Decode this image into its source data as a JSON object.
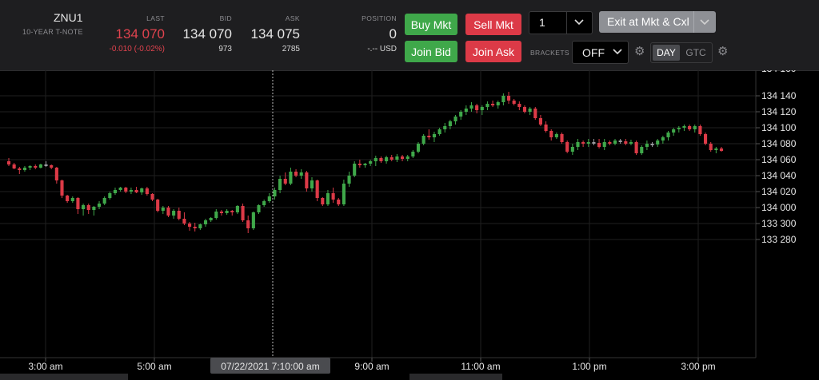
{
  "instrument": {
    "symbol": "ZNU1",
    "name": "10-YEAR T-NOTE"
  },
  "quote": {
    "last_header": "LAST",
    "last": "134 070",
    "change": "-0.010 (-0.02%)",
    "bid_header": "BID",
    "bid": "134 070",
    "bid_size": "973",
    "ask_header": "ASK",
    "ask": "134 075",
    "ask_size": "2785"
  },
  "position": {
    "header": "POSITION",
    "value": "0",
    "pnl": "-.-- USD"
  },
  "buttons": {
    "buy_mkt": "Buy Mkt",
    "sell_mkt": "Sell Mkt",
    "join_bid": "Join Bid",
    "join_ask": "Join Ask",
    "exit": "Exit at Mkt & Cxl"
  },
  "quantity": "1",
  "brackets": {
    "label": "BRACKETS",
    "value": "OFF"
  },
  "tif": {
    "day": "DAY",
    "gtc": "GTC"
  },
  "icons": {
    "dropdown": "chevron-down-icon",
    "settings": "gear-icon"
  },
  "colors": {
    "up": "#3fa84a",
    "down": "#dc3a47",
    "doji": "#9a9aa0",
    "buy": "#3fa84a",
    "sell": "#dc3a47"
  },
  "chart_data": {
    "type": "candlestick",
    "y_ticks": [
      "134 140",
      "134 120",
      "134 100",
      "134 080",
      "134 060",
      "134 040",
      "134 020",
      "134 000",
      "133 300",
      "133 280"
    ],
    "x_ticks": [
      "3:00 am",
      "5:00 am",
      "9:00 am",
      "11:00 am",
      "1:00 pm",
      "3:00 pm"
    ],
    "crosshair_label": "07/22/2021 7:10:00 am",
    "candles": [
      [
        58,
        62,
        52,
        54
      ],
      [
        54,
        56,
        48,
        49
      ],
      [
        49,
        51,
        42,
        47
      ],
      [
        47,
        52,
        45,
        50
      ],
      [
        50,
        53,
        47,
        52
      ],
      [
        52,
        54,
        48,
        50
      ],
      [
        50,
        55,
        49,
        54
      ],
      [
        54,
        58,
        51,
        53
      ],
      [
        53,
        54,
        48,
        50
      ],
      [
        50,
        51,
        30,
        34
      ],
      [
        34,
        35,
        12,
        15
      ],
      [
        15,
        16,
        6,
        8
      ],
      [
        8,
        14,
        6,
        12
      ],
      [
        12,
        13,
        -8,
        -2
      ],
      [
        -2,
        5,
        -10,
        3
      ],
      [
        3,
        5,
        -8,
        -3
      ],
      [
        -3,
        2,
        -10,
        1
      ],
      [
        1,
        8,
        -2,
        5
      ],
      [
        5,
        14,
        3,
        12
      ],
      [
        12,
        20,
        10,
        18
      ],
      [
        18,
        25,
        16,
        22
      ],
      [
        22,
        26,
        20,
        25
      ],
      [
        25,
        26,
        18,
        20
      ],
      [
        20,
        25,
        17,
        22
      ],
      [
        22,
        26,
        18,
        19
      ],
      [
        19,
        25,
        16,
        24
      ],
      [
        24,
        26,
        15,
        17
      ],
      [
        17,
        18,
        8,
        10
      ],
      [
        10,
        11,
        -6,
        -4
      ],
      [
        -4,
        2,
        -8,
        0
      ],
      [
        0,
        2,
        -12,
        -10
      ],
      [
        -10,
        -2,
        -14,
        -4
      ],
      [
        -4,
        0,
        -16,
        -14
      ],
      [
        -14,
        -6,
        -22,
        -20
      ],
      [
        -20,
        -18,
        -29,
        -24
      ],
      [
        -24,
        -19,
        -30,
        -26
      ],
      [
        -26,
        -20,
        -28,
        -21
      ],
      [
        -21,
        -14,
        -24,
        -16
      ],
      [
        -16,
        -12,
        -18,
        -13
      ],
      [
        -13,
        -2,
        -15,
        -5
      ],
      [
        -5,
        -3,
        -10,
        -7
      ],
      [
        -7,
        -2,
        -9,
        -4
      ],
      [
        -4,
        -3,
        -10,
        -6
      ],
      [
        -6,
        3,
        -8,
        2
      ],
      [
        2,
        5,
        -18,
        -16
      ],
      [
        -16,
        -10,
        -32,
        -26
      ],
      [
        -26,
        -5,
        -28,
        -6
      ],
      [
        -6,
        4,
        -8,
        3
      ],
      [
        3,
        10,
        1,
        8
      ],
      [
        8,
        18,
        6,
        14
      ],
      [
        14,
        25,
        10,
        22
      ],
      [
        22,
        40,
        18,
        36
      ],
      [
        36,
        44,
        28,
        30
      ],
      [
        30,
        50,
        28,
        45
      ],
      [
        45,
        48,
        38,
        40
      ],
      [
        40,
        48,
        36,
        44
      ],
      [
        44,
        46,
        20,
        24
      ],
      [
        24,
        38,
        20,
        34
      ],
      [
        34,
        35,
        8,
        12
      ],
      [
        12,
        13,
        2,
        4
      ],
      [
        4,
        22,
        2,
        18
      ],
      [
        18,
        25,
        6,
        10
      ],
      [
        10,
        12,
        2,
        4
      ],
      [
        4,
        35,
        2,
        30
      ],
      [
        30,
        45,
        26,
        40
      ],
      [
        40,
        58,
        38,
        55
      ],
      [
        55,
        60,
        50,
        53
      ],
      [
        53,
        56,
        50,
        55
      ],
      [
        55,
        60,
        52,
        58
      ],
      [
        58,
        65,
        52,
        62
      ],
      [
        62,
        64,
        56,
        58
      ],
      [
        58,
        65,
        55,
        63
      ],
      [
        63,
        66,
        58,
        60
      ],
      [
        60,
        67,
        57,
        64
      ],
      [
        64,
        66,
        58,
        61
      ],
      [
        61,
        66,
        58,
        64
      ],
      [
        64,
        72,
        62,
        70
      ],
      [
        70,
        82,
        68,
        80
      ],
      [
        80,
        92,
        78,
        90
      ],
      [
        90,
        98,
        85,
        88
      ],
      [
        88,
        95,
        82,
        92
      ],
      [
        92,
        100,
        90,
        98
      ],
      [
        98,
        106,
        94,
        102
      ],
      [
        102,
        110,
        98,
        108
      ],
      [
        108,
        116,
        104,
        114
      ],
      [
        114,
        122,
        110,
        120
      ],
      [
        120,
        128,
        116,
        124
      ],
      [
        124,
        132,
        120,
        128
      ],
      [
        128,
        130,
        118,
        122
      ],
      [
        122,
        128,
        116,
        126
      ],
      [
        126,
        133,
        122,
        130
      ],
      [
        130,
        134,
        126,
        128
      ],
      [
        128,
        134,
        124,
        132
      ],
      [
        132,
        143,
        128,
        140
      ],
      [
        140,
        145,
        130,
        134
      ],
      [
        134,
        136,
        128,
        130
      ],
      [
        130,
        133,
        122,
        126
      ],
      [
        126,
        128,
        118,
        120
      ],
      [
        120,
        126,
        116,
        124
      ],
      [
        124,
        126,
        110,
        112
      ],
      [
        112,
        116,
        102,
        104
      ],
      [
        104,
        108,
        94,
        96
      ],
      [
        96,
        98,
        84,
        88
      ],
      [
        88,
        94,
        86,
        92
      ],
      [
        92,
        94,
        80,
        82
      ],
      [
        82,
        84,
        68,
        70
      ],
      [
        70,
        80,
        66,
        76
      ],
      [
        76,
        86,
        72,
        82
      ],
      [
        82,
        84,
        76,
        80
      ],
      [
        80,
        86,
        76,
        82
      ],
      [
        82,
        86,
        78,
        81
      ],
      [
        81,
        86,
        74,
        76
      ],
      [
        76,
        86,
        72,
        82
      ],
      [
        82,
        84,
        78,
        80
      ],
      [
        80,
        86,
        78,
        84
      ],
      [
        84,
        86,
        80,
        83
      ],
      [
        83,
        86,
        78,
        80
      ],
      [
        80,
        85,
        78,
        82
      ],
      [
        82,
        84,
        66,
        68
      ],
      [
        68,
        78,
        66,
        76
      ],
      [
        76,
        84,
        72,
        80
      ],
      [
        80,
        82,
        76,
        79
      ],
      [
        79,
        86,
        76,
        84
      ],
      [
        84,
        90,
        80,
        88
      ],
      [
        88,
        96,
        84,
        94
      ],
      [
        94,
        100,
        90,
        98
      ],
      [
        98,
        102,
        94,
        100
      ],
      [
        100,
        104,
        96,
        102
      ],
      [
        102,
        104,
        96,
        98
      ],
      [
        98,
        104,
        94,
        102
      ],
      [
        102,
        104,
        90,
        92
      ],
      [
        92,
        94,
        78,
        80
      ],
      [
        80,
        82,
        70,
        72
      ],
      [
        72,
        76,
        68,
        74
      ],
      [
        74,
        76,
        70,
        71
      ]
    ]
  }
}
